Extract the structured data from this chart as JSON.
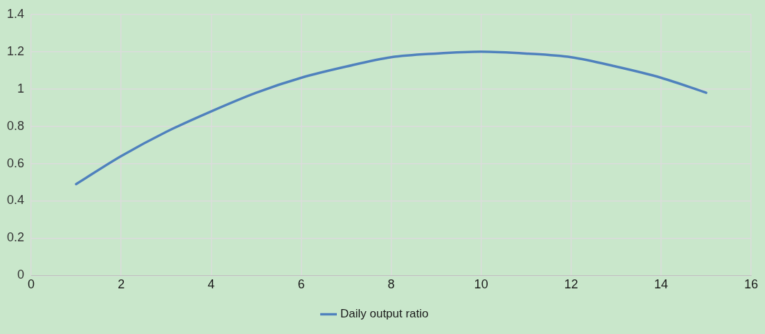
{
  "chart_data": {
    "type": "line",
    "x": [
      1,
      2,
      3,
      4,
      5,
      6,
      7,
      8,
      9,
      10,
      11,
      12,
      13,
      14,
      15
    ],
    "series": [
      {
        "name": "Daily output ratio",
        "color": "#4f81bd",
        "values": [
          0.49,
          0.64,
          0.77,
          0.88,
          0.98,
          1.06,
          1.12,
          1.17,
          1.19,
          1.2,
          1.19,
          1.17,
          1.12,
          1.06,
          0.98
        ]
      }
    ],
    "xlim": [
      0,
      16
    ],
    "xticks": [
      0,
      2,
      4,
      6,
      8,
      10,
      12,
      14,
      16
    ],
    "ylim": [
      0,
      1.4
    ],
    "yticks": [
      0,
      0.2,
      0.4,
      0.6,
      0.8,
      1,
      1.2,
      1.4
    ],
    "grid": true,
    "legend": "bottom",
    "marker": "none",
    "line_style": "solid"
  }
}
